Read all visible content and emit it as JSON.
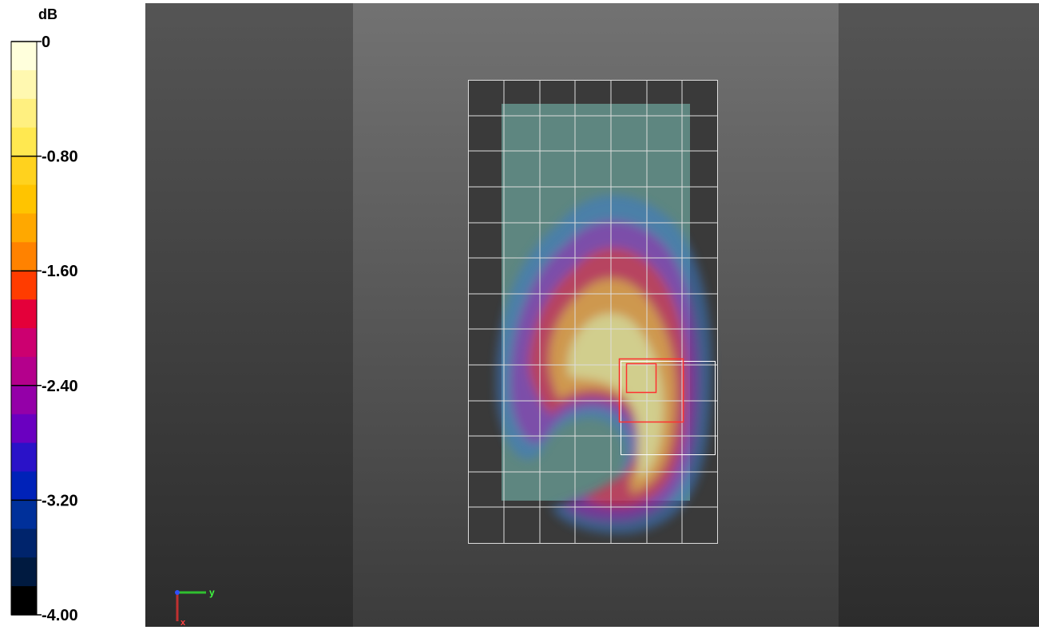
{
  "colorbar": {
    "unit": "dB",
    "lim": [
      -4,
      0
    ],
    "ticks": [
      0,
      {
        "value": -0.8,
        "label": "-0.80"
      },
      {
        "value": -1.6,
        "label": "-1.60"
      },
      {
        "value": -2.4,
        "label": "-2.40"
      },
      {
        "value": -3.2,
        "label": "-3.20"
      },
      {
        "value": -4,
        "label": "-4.00"
      }
    ],
    "colors": [
      "#ffffdc",
      "#fff8b0",
      "#fff080",
      "#ffe850",
      "#ffd21e",
      "#ffc400",
      "#ffa800",
      "#ff8200",
      "#ff3c00",
      "#e4003a",
      "#cc0070",
      "#b4008c",
      "#9400a8",
      "#6a00c0",
      "#2a12c8",
      "#0022b8",
      "#00309a",
      "#00246c",
      "#001a40",
      "#000000"
    ]
  },
  "triad": {
    "y": "y",
    "x": "x"
  }
}
